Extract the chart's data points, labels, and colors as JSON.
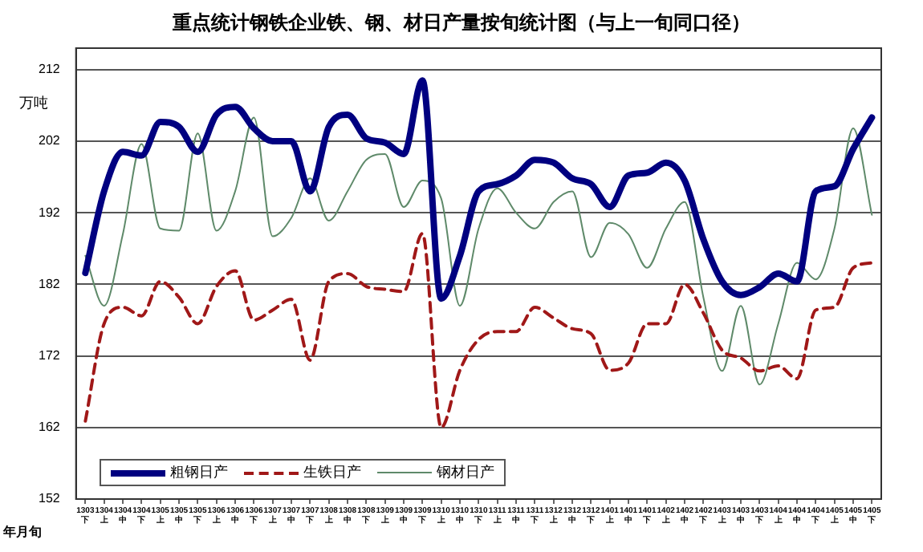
{
  "chart_data": {
    "type": "line",
    "title": "重点统计钢铁企业铁、钢、材日产量按旬统计图（与上一旬同口径）",
    "ylabel": "万吨",
    "xlabel": "年月旬",
    "categories": [
      "1303\n下",
      "1304\n上",
      "1304\n中",
      "1304\n下",
      "1305\n上",
      "1305\n中",
      "1305\n下",
      "1306\n上",
      "1306\n中",
      "1306\n下",
      "1307\n上",
      "1307\n中",
      "1307\n下",
      "1308\n上",
      "1308\n中",
      "1308\n下",
      "1309\n上",
      "1309\n中",
      "1309\n下",
      "1310\n上",
      "1310\n中",
      "1310\n下",
      "1311\n上",
      "1311\n中",
      "1311\n下",
      "1312\n上",
      "1312\n中",
      "1312\n下",
      "1401\n上",
      "1401\n中",
      "1401\n下",
      "1402\n上",
      "1402\n中",
      "1402\n下",
      "1403\n上",
      "1403\n中",
      "1403\n下",
      "1404\n上",
      "1404\n中",
      "1404\n下",
      "1405\n上",
      "1405\n中",
      "1405\n下"
    ],
    "series": [
      {
        "name": "粗钢日产",
        "color": "#000080",
        "line_style": "solid",
        "values": [
          183.6,
          195,
          200.5,
          200,
          204.7,
          204,
          200.5,
          205.7,
          206.8,
          203.8,
          202,
          202,
          195,
          204,
          205.7,
          202.4,
          201.8,
          200.2,
          210.5,
          180,
          186,
          195,
          196,
          197.2,
          199.4,
          199,
          196.8,
          196,
          192.8,
          197.2,
          197.6,
          199,
          196.5,
          188.3,
          182.4,
          180.5,
          181.6,
          183.5,
          182.4,
          195,
          195.7,
          200.9,
          205.3
        ]
      },
      {
        "name": "生铁日产",
        "color": "#a01818",
        "line_style": "dashed",
        "values": [
          162.9,
          176.5,
          178.8,
          177.6,
          182.4,
          180.2,
          176.5,
          181.7,
          183.9,
          177,
          178.4,
          179.9,
          171.4,
          182.4,
          183.5,
          181.7,
          181.3,
          181,
          189.1,
          162,
          170,
          174.3,
          175.4,
          175.4,
          178.8,
          177.3,
          175.8,
          175.1,
          170,
          171,
          176.5,
          176.5,
          182,
          178,
          172.8,
          171.7,
          169.9,
          170.6,
          168.8,
          178.4,
          178.8,
          184.3,
          185
        ]
      },
      {
        "name": "钢材日产",
        "color": "#5f8a6a",
        "line_style": "solid",
        "values": [
          186,
          179,
          189,
          201.6,
          189.8,
          189.5,
          203.1,
          189.5,
          195,
          205.3,
          188.7,
          191.3,
          196.8,
          190.9,
          195,
          199.4,
          200.2,
          192.8,
          196.5,
          194,
          179,
          189.8,
          195.4,
          192,
          189.8,
          193.5,
          195,
          185.8,
          190.6,
          189,
          184.3,
          189.8,
          193.5,
          180.2,
          169.9,
          179,
          168,
          176.5,
          185,
          182.7,
          189.8,
          203.8,
          191.7
        ]
      }
    ],
    "ylim": [
      152,
      215
    ],
    "yticks": [
      152,
      162,
      172,
      182,
      192,
      202,
      212
    ],
    "grid": "y",
    "legend": "bottom left",
    "marker": "none"
  }
}
